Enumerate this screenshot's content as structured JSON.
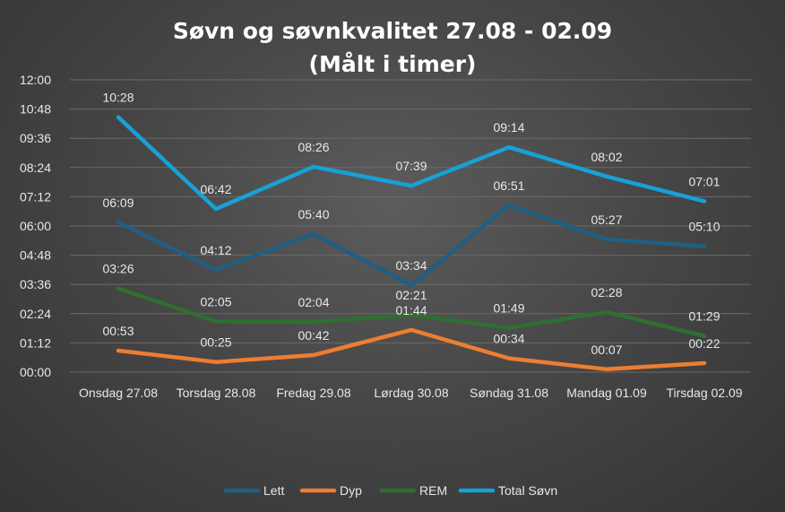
{
  "chart_data": {
    "type": "line",
    "title_line1": "Søvn og søvnkvalitet 27.08 - 02.09",
    "title_line2": "(Målt i timer)",
    "categories": [
      "Onsdag 27.08",
      "Torsdag 28.08",
      "Fredag 29.08",
      "Lørdag 30.08",
      "Søndag 31.08",
      "Mandag 01.09",
      "Tirsdag 02.09"
    ],
    "y_ticks": [
      "00:00",
      "01:12",
      "02:24",
      "03:36",
      "04:48",
      "06:00",
      "07:12",
      "08:24",
      "09:36",
      "10:48",
      "12:00"
    ],
    "ylim_minutes": [
      0,
      720
    ],
    "grid": true,
    "legend_position": "bottom",
    "series": [
      {
        "name": "Lett",
        "color": "#1f5f84",
        "labels": [
          "06:09",
          "04:12",
          "05:40",
          "03:34",
          "06:51",
          "05:27",
          "05:10"
        ]
      },
      {
        "name": "Dyp",
        "color": "#ee7d31",
        "labels": [
          "00:53",
          "00:25",
          "00:42",
          "01:44",
          "00:34",
          "00:07",
          "00:22"
        ]
      },
      {
        "name": "REM",
        "color": "#2f6f2f",
        "labels": [
          "03:26",
          "02:05",
          "02:04",
          "02:21",
          "01:49",
          "02:28",
          "01:29"
        ]
      },
      {
        "name": "Total Søvn",
        "color": "#17a1d6",
        "labels": [
          "10:28",
          "06:42",
          "08:26",
          "07:39",
          "09:14",
          "08:02",
          "07:01"
        ]
      }
    ]
  }
}
